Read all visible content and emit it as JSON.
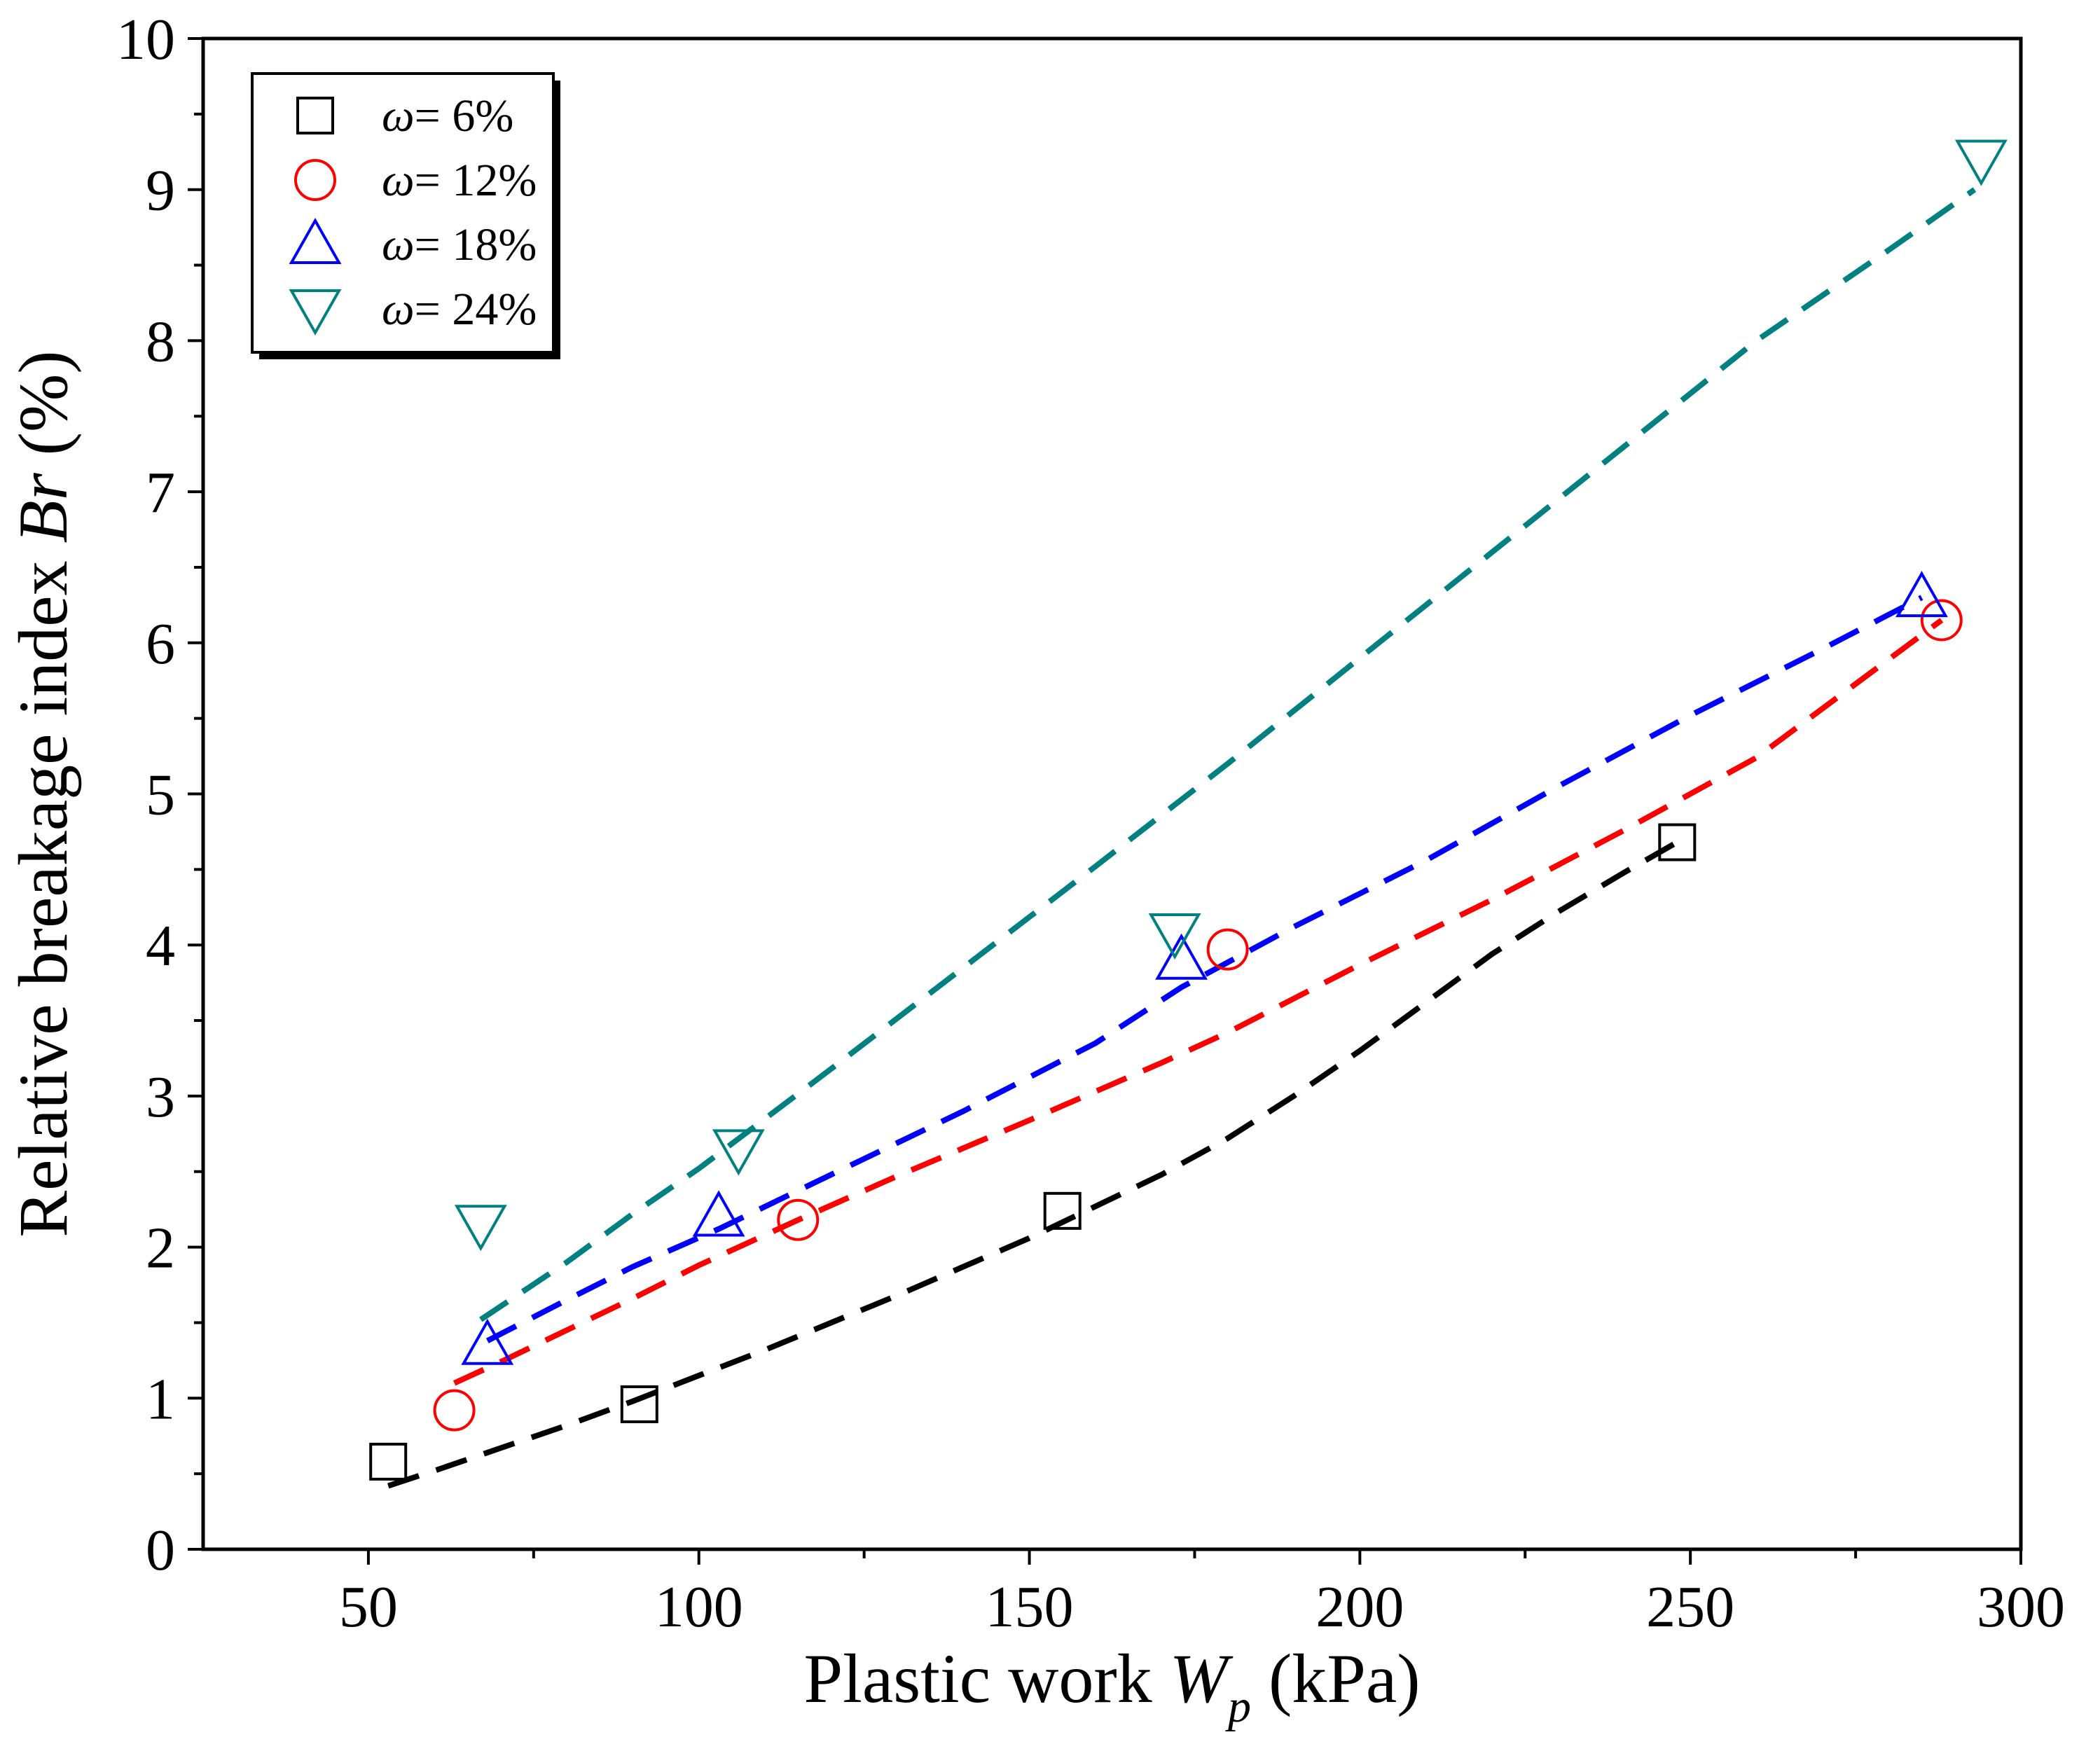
{
  "chart_data": {
    "type": "scatter",
    "title": "",
    "xlabel": {
      "prefix": "Plastic work ",
      "symbol": "W",
      "subscript": "p",
      "unit": " (kPa)"
    },
    "ylabel": {
      "prefix": "Relative breakage index ",
      "symbol": "Br",
      "unit": " (%)"
    },
    "xlim": [
      25,
      300
    ],
    "ylim": [
      0,
      10
    ],
    "xticks": [
      50,
      100,
      150,
      200,
      250,
      300
    ],
    "yticks": [
      0,
      1,
      2,
      3,
      4,
      5,
      6,
      7,
      8,
      9,
      10
    ],
    "x_minor_step": 25,
    "y_minor_step": 0.5,
    "grid": false,
    "legend_position": "top-left",
    "series": [
      {
        "name": "ω= 6%",
        "legend_symbol": "ω",
        "legend_value": "= 6%",
        "marker": "square",
        "color": "#000000",
        "x": [
          53,
          91,
          155,
          248
        ],
        "y": [
          0.58,
          0.96,
          2.24,
          4.68
        ],
        "fit_x": [
          53,
          248
        ],
        "fit_power": 1.32
      },
      {
        "name": "ω= 12%",
        "legend_symbol": "ω",
        "legend_value": "= 12%",
        "marker": "circle",
        "color": "#ff0000",
        "x": [
          63,
          115,
          180,
          288
        ],
        "y": [
          0.92,
          2.18,
          3.97,
          6.15
        ],
        "fit_x": [
          63,
          288
        ],
        "fit_power": 1.05
      },
      {
        "name": "ω= 18%",
        "legend_symbol": "ω",
        "legend_value": "= 18%",
        "marker": "triangle-up",
        "color": "#0000ff",
        "x": [
          68,
          103,
          173,
          285
        ],
        "y": [
          1.35,
          2.2,
          3.9,
          6.3
        ],
        "fit_x": [
          68,
          285
        ],
        "fit_power": 1.0
      },
      {
        "name": "ω= 24%",
        "legend_symbol": "ω",
        "legend_value": "= 24%",
        "marker": "triangle-down",
        "color": "#008080",
        "x": [
          67,
          106,
          172,
          294
        ],
        "y": [
          2.15,
          2.65,
          4.08,
          9.2
        ],
        "fit_x": [
          67,
          293
        ],
        "fit_power": 1.1
      }
    ],
    "fit_lines": [
      {
        "series": "ω= 6%",
        "x": [
          53,
          60,
          70,
          80,
          90,
          100,
          110,
          120,
          130,
          140,
          150,
          160,
          170,
          180,
          190,
          200,
          210,
          220,
          230,
          240,
          248
        ],
        "y": [
          0.42,
          0.52,
          0.67,
          0.82,
          0.98,
          1.15,
          1.32,
          1.5,
          1.68,
          1.87,
          2.06,
          2.27,
          2.48,
          2.72,
          3.0,
          3.3,
          3.62,
          3.94,
          4.22,
          4.48,
          4.68
        ]
      },
      {
        "series": "ω= 12%",
        "x": [
          63,
          70,
          80,
          90,
          100,
          115,
          130,
          150,
          170,
          180,
          200,
          220,
          240,
          260,
          288
        ],
        "y": [
          1.1,
          1.24,
          1.45,
          1.66,
          1.88,
          2.18,
          2.47,
          2.84,
          3.22,
          3.42,
          3.87,
          4.3,
          4.76,
          5.24,
          6.15
        ]
      },
      {
        "series": "ω= 18%",
        "x": [
          68,
          80,
          90,
          103,
          120,
          140,
          160,
          173,
          190,
          210,
          230,
          250,
          270,
          285
        ],
        "y": [
          1.38,
          1.65,
          1.87,
          2.12,
          2.48,
          2.9,
          3.35,
          3.72,
          4.12,
          4.56,
          5.05,
          5.52,
          5.96,
          6.3
        ]
      },
      {
        "series": "ω= 24%",
        "x": [
          67,
          80,
          90,
          100,
          110,
          120,
          140,
          160,
          180,
          200,
          220,
          240,
          260,
          280,
          293
        ],
        "y": [
          1.52,
          1.9,
          2.22,
          2.52,
          2.85,
          3.18,
          3.85,
          4.52,
          5.2,
          5.9,
          6.6,
          7.3,
          8.0,
          8.6,
          9.0
        ]
      }
    ]
  }
}
